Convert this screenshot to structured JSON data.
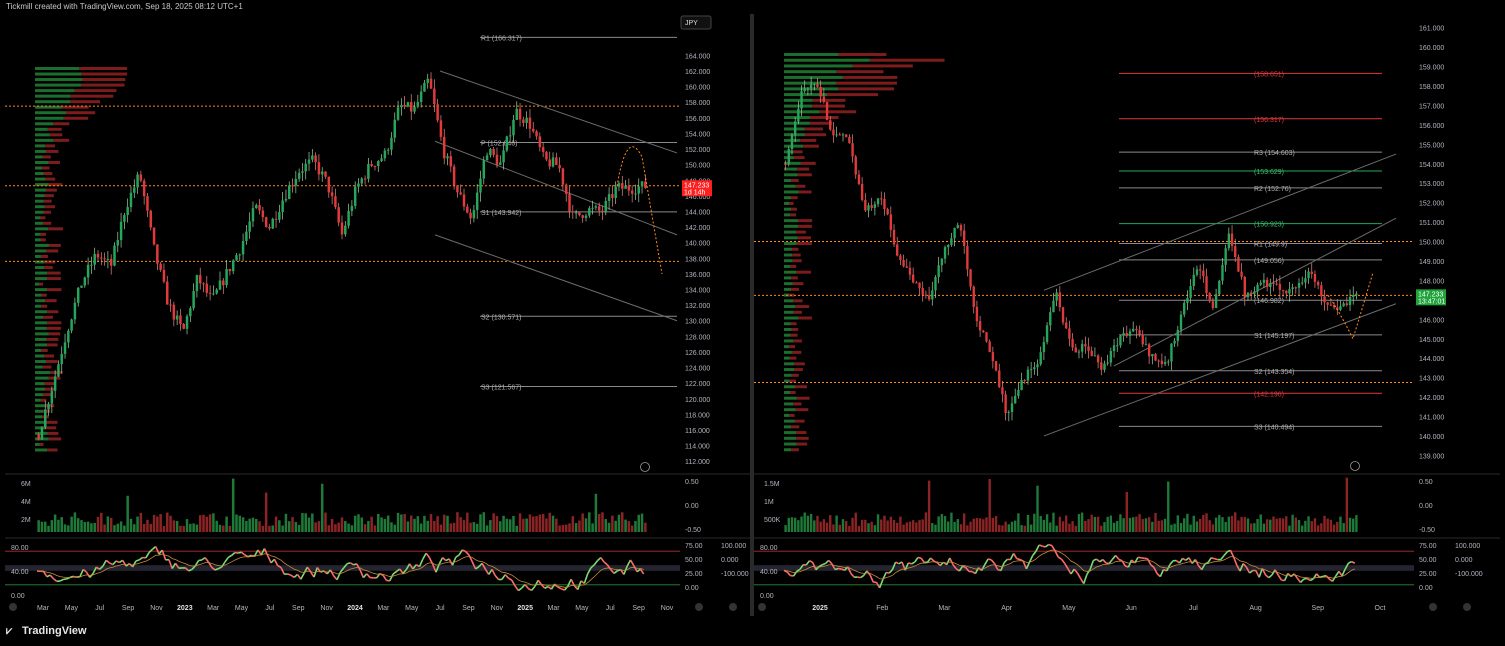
{
  "header": {
    "attribution": "Tickmill created with TradingView.com, Sep 18, 2025 08:12 UTC+1"
  },
  "footer": {
    "brand": "TradingView"
  },
  "colors": {
    "up": "#26a65b",
    "down": "#e03a3a",
    "pivot_line": "#9e9e9e",
    "poc": "#ff8a1c",
    "price_tag": "#ff1f1f",
    "price_tag_right": "#1fa33a",
    "stoch_fast": "#7ddc6f",
    "stoch_fast_down": "#ff6b6b"
  },
  "left_panel": {
    "currency": "JPY",
    "last_price": "147.233",
    "countdown": "1d 14h",
    "levels": [
      {
        "label": "R1 (166.317)",
        "value": 166.317
      },
      {
        "label": "P (152.846)",
        "value": 152.846
      },
      {
        "label": "S1 (143.942)",
        "value": 143.942
      },
      {
        "label": "S2 (130.571)",
        "value": 130.571
      },
      {
        "label": "S3 (121.567)",
        "value": 121.567
      }
    ],
    "price_axis": [
      "164.000",
      "162.000",
      "160.000",
      "158.000",
      "156.000",
      "154.000",
      "152.000",
      "150.000",
      "148.000",
      "146.000",
      "144.000",
      "142.000",
      "140.000",
      "138.000",
      "136.000",
      "134.000",
      "132.000",
      "130.000",
      "128.000",
      "126.000",
      "124.000",
      "122.000",
      "120.000",
      "118.000",
      "116.000",
      "114.000",
      "112.000"
    ],
    "time_axis": [
      "Mar",
      "May",
      "Jul",
      "Sep",
      "Nov",
      "2023",
      "Mar",
      "May",
      "Jul",
      "Sep",
      "Nov",
      "2024",
      "Mar",
      "May",
      "Jul",
      "Sep",
      "Nov",
      "2025",
      "Mar",
      "May",
      "Jul",
      "Sep",
      "Nov"
    ],
    "volume_axis": [
      "6M",
      "4M",
      "2M"
    ],
    "volume_right_axis": [
      "0.50",
      "0.00",
      "-0.50"
    ],
    "osc_left_axis": [
      "80.00",
      "40.00",
      "0.00"
    ],
    "osc_mid_axis": [
      "75.00",
      "50.00",
      "25.00",
      "0.00"
    ],
    "osc_right_axis": [
      "100.000",
      "0.000",
      "-100.000"
    ]
  },
  "right_panel": {
    "last_price": "147.233",
    "countdown": "13:47:01",
    "levels": [
      {
        "label": "(158.651)",
        "value": 158.651,
        "color": "red"
      },
      {
        "label": "(156.317)",
        "value": 156.317,
        "color": "red"
      },
      {
        "label": "R3 (154.603)",
        "value": 154.603,
        "color": "gray"
      },
      {
        "label": "(153.629)",
        "value": 153.629,
        "color": "green"
      },
      {
        "label": "R2 (152.76)",
        "value": 152.76,
        "color": "gray"
      },
      {
        "label": "(150.923)",
        "value": 150.923,
        "color": "green"
      },
      {
        "label": "R1 (149.9)",
        "value": 149.9,
        "color": "gray"
      },
      {
        "label": "(149.056)",
        "value": 149.056,
        "color": "gray"
      },
      {
        "label": "(146.982)",
        "value": 146.982,
        "color": "gray"
      },
      {
        "label": "S1 (145.197)",
        "value": 145.197,
        "color": "gray"
      },
      {
        "label": "S2 (143.354)",
        "value": 143.354,
        "color": "gray"
      },
      {
        "label": "(142.196)",
        "value": 142.196,
        "color": "red"
      },
      {
        "label": "S3 (140.494)",
        "value": 140.494,
        "color": "gray"
      }
    ],
    "price_axis": [
      "161.000",
      "160.000",
      "159.000",
      "158.000",
      "157.000",
      "156.000",
      "155.000",
      "154.000",
      "153.000",
      "152.000",
      "151.000",
      "150.000",
      "149.000",
      "148.000",
      "147.000",
      "146.000",
      "145.000",
      "144.000",
      "143.000",
      "142.000",
      "141.000",
      "140.000",
      "139.000"
    ],
    "time_axis": [
      "2025",
      "Feb",
      "Mar",
      "Apr",
      "May",
      "Jun",
      "Jul",
      "Aug",
      "Sep",
      "Oct"
    ],
    "volume_axis": [
      "1.5M",
      "1M",
      "500K"
    ],
    "volume_right_axis": [
      "0.50",
      "0.00",
      "-0.50"
    ],
    "osc_left_axis": [
      "80.00",
      "40.00",
      "0.00"
    ],
    "osc_mid_axis": [
      "75.00",
      "50.00",
      "25.00",
      "0.00"
    ],
    "osc_right_axis": [
      "100.000",
      "0.000",
      "-100.000"
    ]
  },
  "chart_data": [
    {
      "type": "candlestick",
      "ylim": [
        111,
        167
      ],
      "yticks": [
        164,
        162,
        160,
        158,
        156,
        154,
        152,
        150,
        148,
        146,
        144,
        142,
        140,
        138,
        136,
        134,
        132,
        130,
        128,
        126,
        124,
        122,
        120,
        118,
        116,
        114,
        112
      ],
      "x": [
        "Mar",
        "May",
        "Jul",
        "Sep",
        "Nov",
        "2023",
        "Mar",
        "May",
        "Jul",
        "Sep",
        "Nov",
        "2024",
        "Mar",
        "May",
        "Jul",
        "Sep",
        "Nov",
        "2025",
        "Mar",
        "May",
        "Jul",
        "Sep"
      ],
      "close_path": [
        [
          "2022-03",
          115.5
        ],
        [
          "2022-04",
          122.0
        ],
        [
          "2022-05",
          129.0
        ],
        [
          "2022-06",
          135.0
        ],
        [
          "2022-07",
          138.5
        ],
        [
          "2022-08",
          137.0
        ],
        [
          "2022-09",
          144.5
        ],
        [
          "2022-10",
          148.8
        ],
        [
          "2022-11",
          139.0
        ],
        [
          "2022-12",
          132.0
        ],
        [
          "2023-01",
          128.5
        ],
        [
          "2023-02",
          135.5
        ],
        [
          "2023-03",
          132.5
        ],
        [
          "2023-04",
          136.0
        ],
        [
          "2023-05",
          139.5
        ],
        [
          "2023-06",
          144.5
        ],
        [
          "2023-07",
          142.0
        ],
        [
          "2023-08",
          146.0
        ],
        [
          "2023-09",
          149.2
        ],
        [
          "2023-10",
          150.5
        ],
        [
          "2023-11",
          147.5
        ],
        [
          "2023-12",
          141.0
        ],
        [
          "2024-01",
          147.0
        ],
        [
          "2024-02",
          150.0
        ],
        [
          "2024-03",
          151.3
        ],
        [
          "2024-04",
          157.5
        ],
        [
          "2024-05",
          157.0
        ],
        [
          "2024-06",
          160.9
        ],
        [
          "2024-07",
          152.0
        ],
        [
          "2024-08",
          146.5
        ],
        [
          "2024-09",
          143.0
        ],
        [
          "2024-10",
          152.0
        ],
        [
          "2024-11",
          150.0
        ],
        [
          "2024-12",
          157.0
        ],
        [
          "2025-01",
          155.2
        ],
        [
          "2025-02",
          150.5
        ],
        [
          "2025-03",
          149.9
        ],
        [
          "2025-04",
          143.1
        ],
        [
          "2025-05",
          144.2
        ],
        [
          "2025-06",
          144.0
        ],
        [
          "2025-07",
          147.0
        ],
        [
          "2025-08",
          147.0
        ],
        [
          "2025-09",
          147.233
        ]
      ],
      "projection": [
        151.0,
        136.0
      ]
    },
    {
      "type": "candlestick",
      "ylim": [
        138.3,
        161.5
      ],
      "yticks": [
        161,
        160,
        159,
        158,
        157,
        156,
        155,
        154,
        153,
        152,
        151,
        150,
        149,
        148,
        147,
        146,
        145,
        144,
        143,
        142,
        141,
        140,
        139
      ],
      "x": [
        "2025",
        "Feb",
        "Mar",
        "Apr",
        "May",
        "Jun",
        "Jul",
        "Aug",
        "Sep",
        "Oct"
      ],
      "close_path": [
        [
          "2025-01-02",
          154.0
        ],
        [
          "2025-01-08",
          157.8
        ],
        [
          "2025-01-10",
          158.0
        ],
        [
          "2025-01-20",
          155.5
        ],
        [
          "2025-01-31",
          155.2
        ],
        [
          "2025-02-07",
          151.5
        ],
        [
          "2025-02-14",
          152.5
        ],
        [
          "2025-02-21",
          149.5
        ],
        [
          "2025-03-03",
          148.0
        ],
        [
          "2025-03-11",
          147.0
        ],
        [
          "2025-03-20",
          149.5
        ],
        [
          "2025-03-27",
          151.0
        ],
        [
          "2025-04-03",
          146.2
        ],
        [
          "2025-04-10",
          144.0
        ],
        [
          "2025-04-21",
          141.0
        ],
        [
          "2025-04-28",
          143.0
        ],
        [
          "2025-05-05",
          143.8
        ],
        [
          "2025-05-12",
          147.5
        ],
        [
          "2025-05-19",
          144.5
        ],
        [
          "2025-05-28",
          144.5
        ],
        [
          "2025-06-04",
          143.5
        ],
        [
          "2025-06-11",
          145.0
        ],
        [
          "2025-06-18",
          145.5
        ],
        [
          "2025-06-25",
          144.2
        ],
        [
          "2025-07-02",
          143.6
        ],
        [
          "2025-07-09",
          146.4
        ],
        [
          "2025-07-16",
          148.8
        ],
        [
          "2025-07-23",
          146.5
        ],
        [
          "2025-07-31",
          150.5
        ],
        [
          "2025-08-05",
          147.2
        ],
        [
          "2025-08-12",
          148.0
        ],
        [
          "2025-08-19",
          147.6
        ],
        [
          "2025-08-26",
          147.5
        ],
        [
          "2025-09-01",
          148.5
        ],
        [
          "2025-09-08",
          147.0
        ],
        [
          "2025-09-12",
          146.5
        ],
        [
          "2025-09-17",
          147.233
        ]
      ],
      "projection": [
        145.0,
        148.4
      ]
    }
  ]
}
